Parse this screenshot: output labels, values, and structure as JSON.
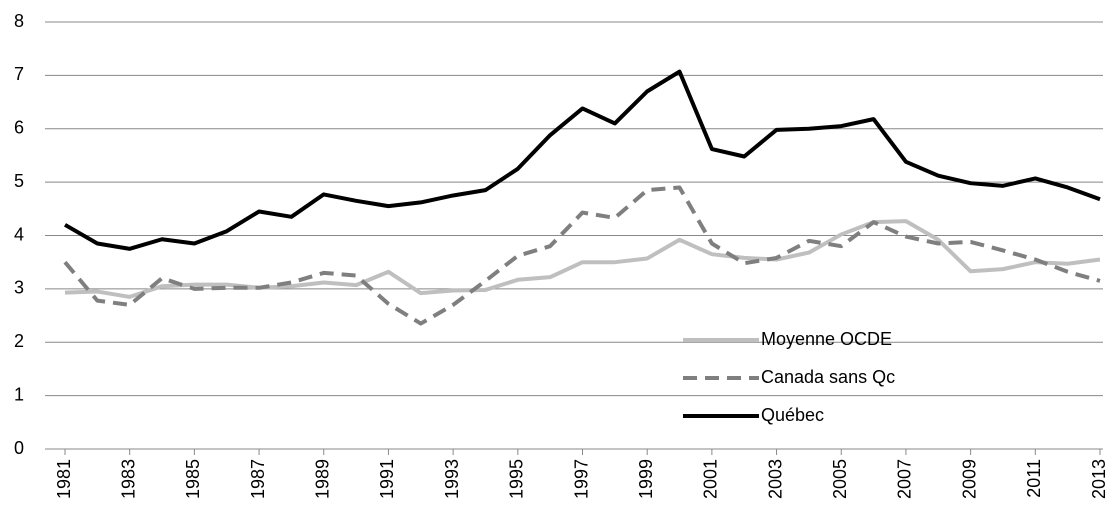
{
  "chart_data": {
    "type": "line",
    "x": [
      1981,
      1982,
      1983,
      1984,
      1985,
      1986,
      1987,
      1988,
      1989,
      1990,
      1991,
      1992,
      1993,
      1994,
      1995,
      1996,
      1997,
      1998,
      1999,
      2000,
      2001,
      2002,
      2003,
      2004,
      2005,
      2006,
      2007,
      2008,
      2009,
      2010,
      2011,
      2012,
      2013
    ],
    "xlim": [
      1981,
      2013
    ],
    "xticks": [
      1981,
      1983,
      1985,
      1987,
      1989,
      1991,
      1993,
      1995,
      1997,
      1999,
      2001,
      2003,
      2005,
      2007,
      2009,
      2011,
      2013
    ],
    "ylim": [
      0,
      8
    ],
    "yticks": [
      0,
      1,
      2,
      3,
      4,
      5,
      6,
      7,
      8
    ],
    "grid": true,
    "legend": "lower right",
    "series": [
      {
        "name": "Moyenne OCDE",
        "color": "#bfbfbf",
        "dashed": false,
        "values": [
          2.93,
          2.95,
          2.85,
          3.05,
          3.08,
          3.08,
          3.02,
          3.05,
          3.12,
          3.07,
          3.32,
          2.92,
          2.97,
          2.98,
          3.17,
          3.22,
          3.5,
          3.5,
          3.57,
          3.92,
          3.65,
          3.58,
          3.55,
          3.68,
          4.02,
          4.25,
          4.27,
          3.92,
          3.33,
          3.37,
          3.5,
          3.47,
          3.55
        ]
      },
      {
        "name": "Canada sans Qc",
        "color": "#7f7f7f",
        "dashed": true,
        "values": [
          3.5,
          2.78,
          2.7,
          3.2,
          3.0,
          3.02,
          3.02,
          3.12,
          3.3,
          3.25,
          2.72,
          2.35,
          2.7,
          3.15,
          3.62,
          3.8,
          4.43,
          4.33,
          4.85,
          4.9,
          3.85,
          3.48,
          3.58,
          3.9,
          3.8,
          4.25,
          3.98,
          3.85,
          3.88,
          3.72,
          3.55,
          3.32,
          3.15
        ]
      },
      {
        "name": "Québec",
        "color": "#000000",
        "dashed": false,
        "values": [
          4.2,
          3.85,
          3.75,
          3.93,
          3.85,
          4.08,
          4.45,
          4.35,
          4.77,
          4.65,
          4.55,
          4.62,
          4.75,
          4.85,
          5.25,
          5.88,
          6.38,
          6.1,
          6.7,
          7.07,
          5.62,
          5.48,
          5.98,
          6.0,
          6.05,
          6.18,
          5.38,
          5.12,
          4.98,
          4.93,
          5.07,
          4.9,
          4.68
        ]
      }
    ]
  }
}
